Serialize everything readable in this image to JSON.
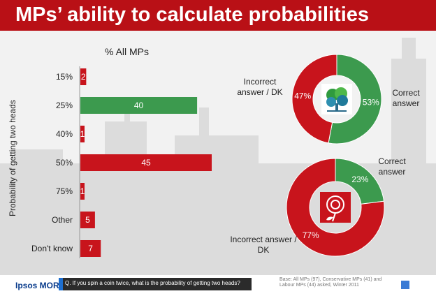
{
  "title": "MPs’ ability to calculate probabilities",
  "colors": {
    "red": "#c8141c",
    "green": "#3c9a4e",
    "title_bar": "#b91016",
    "logo_blue": "#0a3c8c"
  },
  "chart_data": [
    {
      "type": "bar",
      "orientation": "horizontal",
      "title": "% All MPs",
      "ylabel": "Probability of getting two heads",
      "categories": [
        "15%",
        "25%",
        "40%",
        "50%",
        "75%",
        "Other",
        "Don't know"
      ],
      "values": [
        2,
        40,
        1,
        45,
        1,
        5,
        7
      ],
      "value_labels": [
        "2",
        "40",
        "1",
        "45",
        "1",
        "5",
        "7"
      ],
      "bar_colors": [
        "#c8141c",
        "#3c9a4e",
        "#c8141c",
        "#c8141c",
        "#c8141c",
        "#c8141c",
        "#c8141c"
      ],
      "xlim": [
        0,
        50
      ],
      "grid": false
    },
    {
      "type": "pie",
      "style": "donut",
      "party_icon": "oak-tree-icon",
      "slices": [
        {
          "label": "Correct answer",
          "value": 53,
          "display": "53%",
          "color": "#3c9a4e"
        },
        {
          "label": "Incorrect answer / DK",
          "value": 47,
          "display": "47%",
          "color": "#c8141c"
        }
      ]
    },
    {
      "type": "pie",
      "style": "donut",
      "party_icon": "rose-icon",
      "slices": [
        {
          "label": "Correct answer",
          "value": 23,
          "display": "23%",
          "color": "#3c9a4e"
        },
        {
          "label": "Incorrect answer / DK",
          "value": 77,
          "display": "77%",
          "color": "#c8141c"
        }
      ]
    }
  ],
  "donut_labels": {
    "con_incorrect": "Incorrect answer / DK",
    "con_correct": "Correct answer",
    "lab_correct": "Correct answer",
    "lab_incorrect": "Incorrect answer / DK"
  },
  "footer": {
    "logo": "Ipsos MORI",
    "question": "Q. If you spin a coin twice, what is the probability of getting two heads?",
    "base": "Base: All MPs (97), Conservative MPs (41) and Labour MPs (44) asked, Winter 2011"
  }
}
